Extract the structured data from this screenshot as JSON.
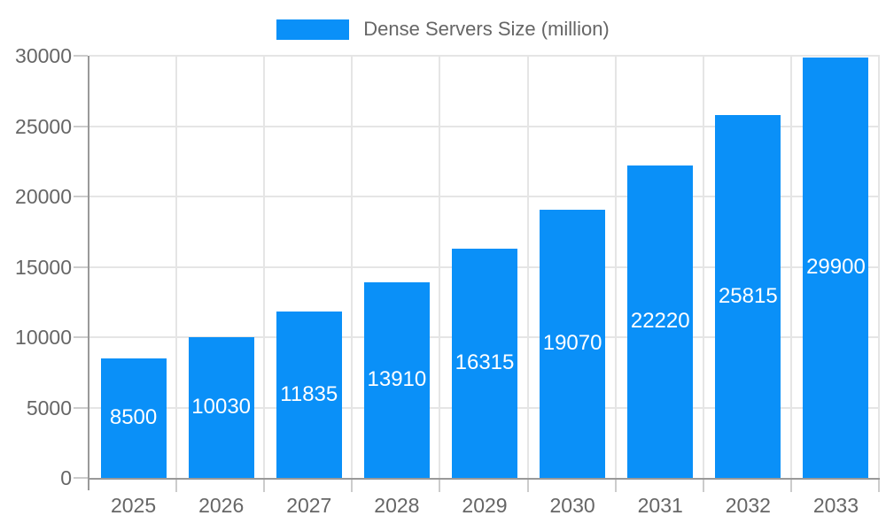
{
  "legend": {
    "label": "Dense Servers Size (million)"
  },
  "colors": {
    "bar": "#0a90f8",
    "axis": "#999999",
    "grid": "#e5e5e5",
    "tick": "#cccccc",
    "axis_label_text": "#666666",
    "value_label_text": "#ffffff",
    "background": "#ffffff"
  },
  "chart_data": {
    "type": "bar",
    "title": "Dense Servers Size (million)",
    "series_name": "Dense Servers Size (million)",
    "categories": [
      "2025",
      "2026",
      "2027",
      "2028",
      "2029",
      "2030",
      "2031",
      "2032",
      "2033"
    ],
    "values": [
      8500,
      10030,
      11835,
      13910,
      16315,
      19070,
      22220,
      25815,
      29900
    ],
    "xlabel": "",
    "ylabel": "",
    "ylim": [
      0,
      30000
    ],
    "yticks": [
      0,
      5000,
      10000,
      15000,
      20000,
      25000,
      30000
    ],
    "grid": true,
    "legend_position": "top-center",
    "value_labels": "inside-center"
  }
}
